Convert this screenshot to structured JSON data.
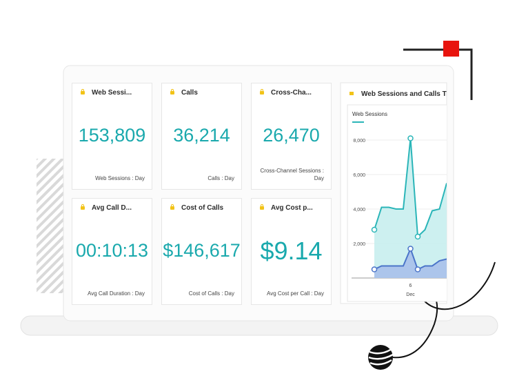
{
  "cards": [
    {
      "title": "Web Sessi...",
      "value": "153,809",
      "footer": "Web Sessions : Day"
    },
    {
      "title": "Calls",
      "value": "36,214",
      "footer": "Calls : Day"
    },
    {
      "title": "Cross-Cha...",
      "value": "26,470",
      "footer": "Cross-Channel Sessions : Day"
    },
    {
      "title": "Avg Call D...",
      "value": "00:10:13",
      "footer": "Avg Call Duration : Day"
    },
    {
      "title": "Cost of Calls",
      "value": "$146,617",
      "footer": "Cost of Calls : Day"
    },
    {
      "title": "Avg Cost p...",
      "value": "$9.14",
      "footer": "Avg Cost per Call : Day"
    }
  ],
  "trend_chart": {
    "type": "area",
    "title": "Web Sessions and Calls Tren",
    "legend": "Web Sessions",
    "categories": [
      null,
      null,
      null,
      null,
      null,
      "6",
      null,
      null,
      null,
      null,
      null
    ],
    "x_label": "Dec",
    "series": [
      {
        "name": "Web Sessions",
        "color": "#2ab5b8",
        "values": [
          2800,
          4100,
          4100,
          4000,
          4000,
          8100,
          2400,
          2800,
          3900,
          4000,
          5500
        ]
      },
      {
        "name": "Calls",
        "color": "#4a74c9",
        "values": [
          500,
          700,
          700,
          700,
          700,
          1700,
          500,
          700,
          700,
          1000,
          1100
        ]
      }
    ],
    "ylim": [
      0,
      9000
    ],
    "yticks": [
      {
        "value": 2000,
        "label": "2,000"
      },
      {
        "value": 4000,
        "label": "4,000"
      },
      {
        "value": 6000,
        "label": "6,000"
      },
      {
        "value": 8000,
        "label": "8,000"
      }
    ]
  }
}
